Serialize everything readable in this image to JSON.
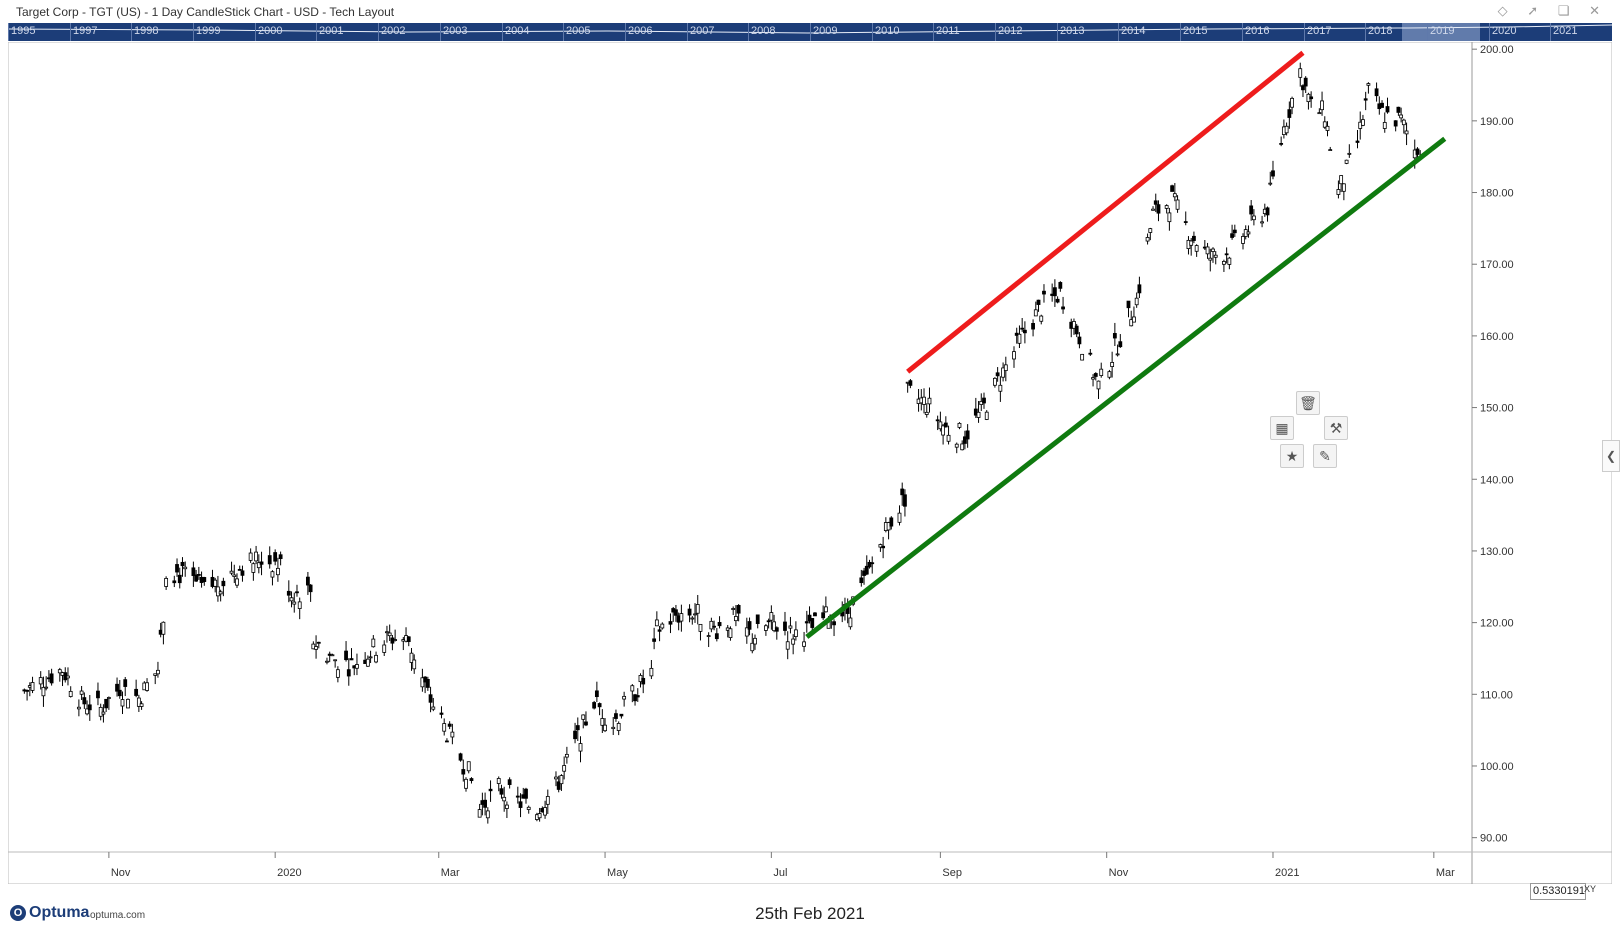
{
  "window": {
    "title": "Target Corp - TGT (US) - 1 Day CandleStick Chart - USD - Tech Layout"
  },
  "overview": {
    "years": [
      "1995",
      "1997",
      "1998",
      "1999",
      "2000",
      "2001",
      "2002",
      "2003",
      "2004",
      "2005",
      "2006",
      "2007",
      "2008",
      "2009",
      "2010",
      "2011",
      "2012",
      "2013",
      "2014",
      "2015",
      "2016",
      "2017",
      "2018",
      "2019",
      "2020",
      "2021"
    ]
  },
  "chart_data": {
    "type": "candlestick",
    "title": "Target Corp - TGT (US) - 1 Day CandleStick Chart - USD - Tech Layout",
    "xlabel": "",
    "ylabel": "",
    "ylim": [
      88,
      201
    ],
    "y_ticks": [
      "200.00",
      "190.00",
      "180.00",
      "170.00",
      "160.00",
      "150.00",
      "140.00",
      "130.00",
      "120.00",
      "110.00",
      "100.00",
      "90.00"
    ],
    "x_ticks": [
      "Nov",
      "2020",
      "Mar",
      "May",
      "Jul",
      "Sep",
      "Nov",
      "2021",
      "Mar"
    ],
    "series": [
      {
        "name": "TGT",
        "points": [
          [
            "2019-10-01",
            110.5
          ],
          [
            "2019-10-08",
            112.0
          ],
          [
            "2019-10-15",
            113.5
          ],
          [
            "2019-10-22",
            109.0
          ],
          [
            "2019-10-29",
            108.0
          ],
          [
            "2019-11-05",
            111.0
          ],
          [
            "2019-11-12",
            109.5
          ],
          [
            "2019-11-19",
            113.5
          ],
          [
            "2019-11-21",
            120.5
          ],
          [
            "2019-11-22",
            127.5
          ],
          [
            "2019-11-29",
            126.5
          ],
          [
            "2019-12-06",
            124.5
          ],
          [
            "2019-12-13",
            126.0
          ],
          [
            "2019-12-20",
            128.0
          ],
          [
            "2019-12-27",
            129.0
          ],
          [
            "2020-01-03",
            128.0
          ],
          [
            "2020-01-07",
            124.0
          ],
          [
            "2020-01-14",
            124.5
          ],
          [
            "2020-01-15",
            117.5
          ],
          [
            "2020-01-22",
            115.0
          ],
          [
            "2020-01-29",
            114.0
          ],
          [
            "2020-02-05",
            116.0
          ],
          [
            "2020-02-12",
            118.0
          ],
          [
            "2020-02-19",
            117.5
          ],
          [
            "2020-02-26",
            110.0
          ],
          [
            "2020-03-05",
            104.0
          ],
          [
            "2020-03-12",
            99.0
          ],
          [
            "2020-03-16",
            94.0
          ],
          [
            "2020-03-23",
            97.0
          ],
          [
            "2020-03-30",
            95.0
          ],
          [
            "2020-04-06",
            94.0
          ],
          [
            "2020-04-13",
            97.0
          ],
          [
            "2020-04-20",
            103.0
          ],
          [
            "2020-04-27",
            109.0
          ],
          [
            "2020-05-04",
            106.0
          ],
          [
            "2020-05-11",
            110.0
          ],
          [
            "2020-05-18",
            113.0
          ],
          [
            "2020-05-20",
            119.0
          ],
          [
            "2020-05-27",
            121.0
          ],
          [
            "2020-06-03",
            121.5
          ],
          [
            "2020-06-10",
            119.0
          ],
          [
            "2020-06-17",
            120.5
          ],
          [
            "2020-06-24",
            118.0
          ],
          [
            "2020-07-01",
            120.0
          ],
          [
            "2020-07-08",
            118.5
          ],
          [
            "2020-07-15",
            119.0
          ],
          [
            "2020-07-22",
            121.0
          ],
          [
            "2020-07-29",
            121.5
          ],
          [
            "2020-08-05",
            126.0
          ],
          [
            "2020-08-12",
            133.0
          ],
          [
            "2020-08-19",
            137.5
          ],
          [
            "2020-08-20",
            152.0
          ],
          [
            "2020-08-27",
            150.5
          ],
          [
            "2020-09-03",
            147.0
          ],
          [
            "2020-09-10",
            146.0
          ],
          [
            "2020-09-17",
            150.0
          ],
          [
            "2020-09-24",
            155.0
          ],
          [
            "2020-10-01",
            160.0
          ],
          [
            "2020-10-08",
            164.0
          ],
          [
            "2020-10-15",
            166.0
          ],
          [
            "2020-10-22",
            160.0
          ],
          [
            "2020-10-29",
            153.0
          ],
          [
            "2020-11-05",
            159.0
          ],
          [
            "2020-11-12",
            165.0
          ],
          [
            "2020-11-18",
            177.0
          ],
          [
            "2020-11-25",
            179.0
          ],
          [
            "2020-12-02",
            174.0
          ],
          [
            "2020-12-09",
            171.0
          ],
          [
            "2020-12-16",
            172.0
          ],
          [
            "2020-12-23",
            175.0
          ],
          [
            "2020-12-30",
            178.0
          ],
          [
            "2021-01-05",
            189.0
          ],
          [
            "2021-01-11",
            197.0
          ],
          [
            "2021-01-15",
            192.0
          ],
          [
            "2021-01-20",
            191.0
          ],
          [
            "2021-01-25",
            180.0
          ],
          [
            "2021-02-01",
            187.0
          ],
          [
            "2021-02-05",
            194.0
          ],
          [
            "2021-02-10",
            191.0
          ],
          [
            "2021-02-17",
            190.0
          ],
          [
            "2021-02-22",
            186.0
          ],
          [
            "2021-02-25",
            186.5
          ]
        ]
      }
    ],
    "trendlines": [
      {
        "color": "#ee1c1c",
        "from": [
          "2020-08-20",
          155.0
        ],
        "to": [
          "2021-01-12",
          199.5
        ]
      },
      {
        "color": "#0f7a0f",
        "from": [
          "2020-07-14",
          118.0
        ],
        "to": [
          "2021-03-05",
          187.5
        ]
      }
    ]
  },
  "footer": {
    "brand": "Optuma",
    "site": "optuma.com",
    "date": "25th Feb 2021",
    "xy_value": "0.5330191",
    "xy_label": "XY"
  },
  "icons": {
    "win": [
      "diamond-icon",
      "pin-icon",
      "restore-icon",
      "close-icon"
    ],
    "tools": [
      "trash-icon",
      "bars-icon",
      "wrench-icon",
      "run-icon",
      "pencil-icon"
    ]
  },
  "colors": {
    "accent": "#1c3d78"
  }
}
